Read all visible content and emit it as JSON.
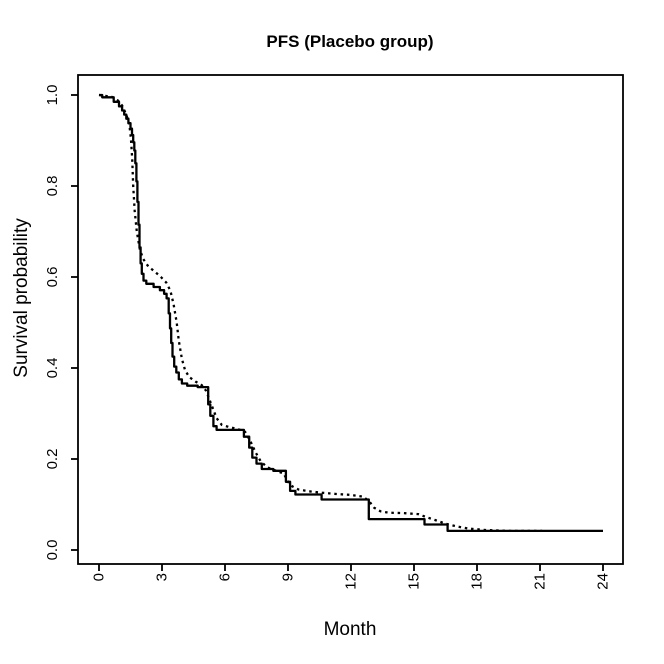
{
  "chart_data": {
    "type": "line",
    "title": "PFS (Placebo group)",
    "xlabel": "Month",
    "ylabel": "Survival probability",
    "xlim": [
      0,
      24
    ],
    "ylim": [
      0.0,
      1.0
    ],
    "x_ticks": [
      0,
      3,
      6,
      9,
      12,
      15,
      18,
      21,
      24
    ],
    "y_ticks": [
      "0.0",
      "0.2",
      "0.4",
      "0.6",
      "0.8",
      "1.0"
    ],
    "grid": false,
    "legend": "none",
    "tick_label_rotation": -90,
    "colors": {
      "foreground": "#000000",
      "background": "#ffffff"
    },
    "series": [
      {
        "name": "solid-step-curve",
        "line_style": "solid",
        "draw": "step",
        "points": [
          [
            0,
            1.0
          ],
          [
            0.15,
            0.995
          ],
          [
            0.7,
            0.985
          ],
          [
            0.95,
            0.975
          ],
          [
            1.1,
            0.966
          ],
          [
            1.2,
            0.957
          ],
          [
            1.3,
            0.948
          ],
          [
            1.4,
            0.938
          ],
          [
            1.5,
            0.926
          ],
          [
            1.57,
            0.912
          ],
          [
            1.63,
            0.896
          ],
          [
            1.68,
            0.878
          ],
          [
            1.73,
            0.85
          ],
          [
            1.78,
            0.81
          ],
          [
            1.83,
            0.765
          ],
          [
            1.88,
            0.715
          ],
          [
            1.93,
            0.665
          ],
          [
            1.98,
            0.63
          ],
          [
            2.04,
            0.607
          ],
          [
            2.12,
            0.592
          ],
          [
            2.25,
            0.585
          ],
          [
            2.6,
            0.578
          ],
          [
            2.9,
            0.571
          ],
          [
            3.1,
            0.563
          ],
          [
            3.22,
            0.553
          ],
          [
            3.32,
            0.52
          ],
          [
            3.38,
            0.487
          ],
          [
            3.44,
            0.455
          ],
          [
            3.5,
            0.425
          ],
          [
            3.58,
            0.403
          ],
          [
            3.68,
            0.39
          ],
          [
            3.8,
            0.375
          ],
          [
            3.95,
            0.366
          ],
          [
            4.2,
            0.361
          ],
          [
            4.7,
            0.358
          ],
          [
            5.2,
            0.32
          ],
          [
            5.3,
            0.295
          ],
          [
            5.45,
            0.272
          ],
          [
            5.6,
            0.264
          ],
          [
            6.9,
            0.249
          ],
          [
            7.15,
            0.225
          ],
          [
            7.3,
            0.203
          ],
          [
            7.5,
            0.19
          ],
          [
            7.75,
            0.178
          ],
          [
            8.3,
            0.174
          ],
          [
            8.9,
            0.15
          ],
          [
            9.1,
            0.13
          ],
          [
            9.35,
            0.122
          ],
          [
            10.6,
            0.111
          ],
          [
            12.85,
            0.068
          ],
          [
            15.5,
            0.056
          ],
          [
            16.6,
            0.042
          ],
          [
            24,
            0.042
          ]
        ]
      },
      {
        "name": "dotted-smooth-curve",
        "line_style": "dotted",
        "draw": "line",
        "points": [
          [
            0,
            1.0
          ],
          [
            0.6,
            0.996
          ],
          [
            0.9,
            0.988
          ],
          [
            1.1,
            0.977
          ],
          [
            1.3,
            0.957
          ],
          [
            1.45,
            0.934
          ],
          [
            1.52,
            0.905
          ],
          [
            1.58,
            0.86
          ],
          [
            1.63,
            0.8
          ],
          [
            1.7,
            0.745
          ],
          [
            1.8,
            0.7
          ],
          [
            1.95,
            0.66
          ],
          [
            2.1,
            0.64
          ],
          [
            2.35,
            0.623
          ],
          [
            2.65,
            0.612
          ],
          [
            2.95,
            0.6
          ],
          [
            3.2,
            0.588
          ],
          [
            3.4,
            0.57
          ],
          [
            3.55,
            0.54
          ],
          [
            3.7,
            0.5
          ],
          [
            3.8,
            0.46
          ],
          [
            3.95,
            0.42
          ],
          [
            4.1,
            0.395
          ],
          [
            4.3,
            0.38
          ],
          [
            4.6,
            0.37
          ],
          [
            4.9,
            0.362
          ],
          [
            5.1,
            0.35
          ],
          [
            5.35,
            0.32
          ],
          [
            5.6,
            0.29
          ],
          [
            5.85,
            0.275
          ],
          [
            6.2,
            0.27
          ],
          [
            6.6,
            0.266
          ],
          [
            6.95,
            0.26
          ],
          [
            7.2,
            0.24
          ],
          [
            7.45,
            0.215
          ],
          [
            7.7,
            0.195
          ],
          [
            8.0,
            0.182
          ],
          [
            8.4,
            0.175
          ],
          [
            8.8,
            0.168
          ],
          [
            9.0,
            0.15
          ],
          [
            9.2,
            0.14
          ],
          [
            9.5,
            0.133
          ],
          [
            10.0,
            0.129
          ],
          [
            10.6,
            0.126
          ],
          [
            11.3,
            0.123
          ],
          [
            12.0,
            0.121
          ],
          [
            12.6,
            0.117
          ],
          [
            12.9,
            0.105
          ],
          [
            13.1,
            0.093
          ],
          [
            13.4,
            0.085
          ],
          [
            13.8,
            0.082
          ],
          [
            14.5,
            0.081
          ],
          [
            15.2,
            0.079
          ],
          [
            15.6,
            0.072
          ],
          [
            16.0,
            0.066
          ],
          [
            16.5,
            0.058
          ],
          [
            17.0,
            0.052
          ],
          [
            17.6,
            0.047
          ],
          [
            18.4,
            0.044
          ],
          [
            19.5,
            0.042
          ],
          [
            21.1,
            0.042
          ]
        ]
      }
    ]
  }
}
